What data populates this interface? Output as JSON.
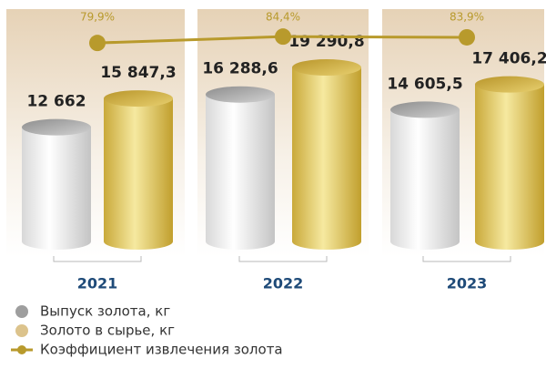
{
  "chart_data": {
    "type": "bar",
    "categories": [
      "2021",
      "2022",
      "2023"
    ],
    "series": [
      {
        "name": "Выпуск золота, кг",
        "color": "#bdbdbd",
        "values": [
          12662,
          16288.6,
          14605.5
        ],
        "value_labels": [
          "12 662",
          "16 288,6",
          "14 605,5"
        ]
      },
      {
        "name": "Золото в сырье, кг",
        "color": "#d9bd55",
        "values": [
          15847.3,
          19290.8,
          17406.2
        ],
        "value_labels": [
          "15 847,3",
          "19 290,8",
          "17 406,2"
        ]
      },
      {
        "name": "Коэффициент извлечения золота",
        "type": "line",
        "color": "#b89a2c",
        "values": [
          79.9,
          84.4,
          83.9
        ],
        "value_labels": [
          "79,9%",
          "84,4%",
          "83,9%"
        ]
      }
    ]
  }
}
